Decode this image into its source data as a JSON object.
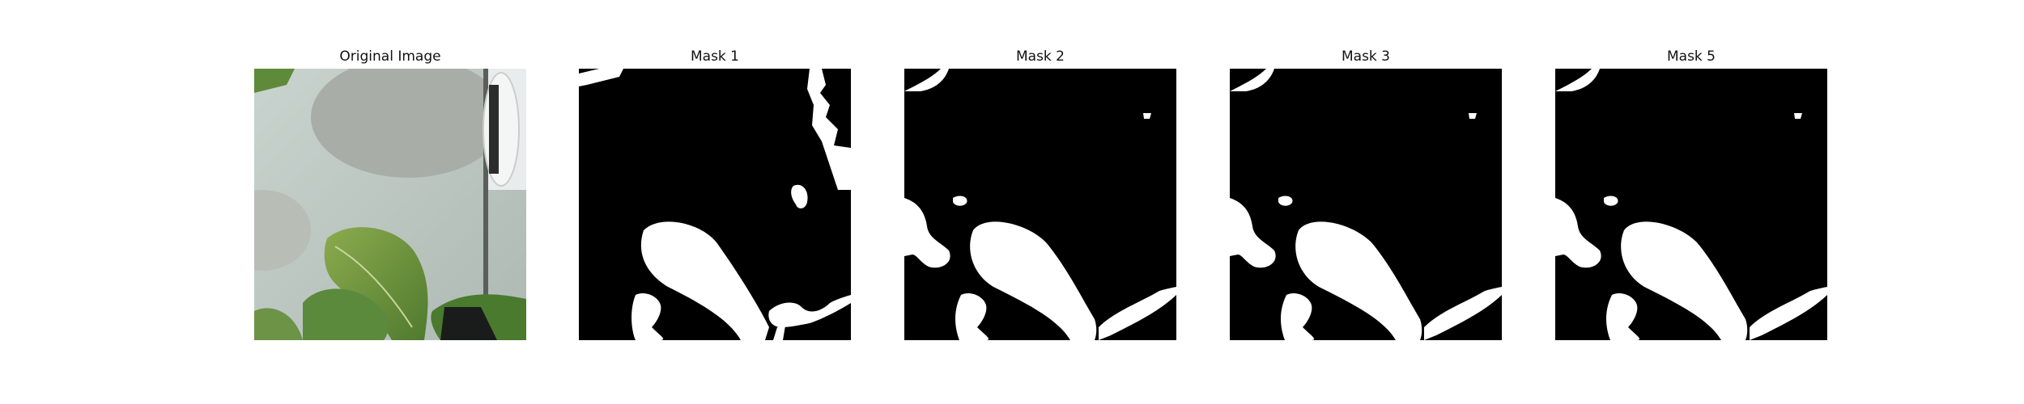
{
  "figure": {
    "panels": [
      {
        "id": "original",
        "title": "Original Image"
      },
      {
        "id": "mask1",
        "title": "Mask 1"
      },
      {
        "id": "mask2",
        "title": "Mask 2"
      },
      {
        "id": "mask3",
        "title": "Mask 3"
      },
      {
        "id": "mask5",
        "title": "Mask 5"
      }
    ]
  },
  "colors": {
    "mask_background": "#000000",
    "mask_foreground": "#ffffff",
    "leaf": "#5f8a3a"
  }
}
